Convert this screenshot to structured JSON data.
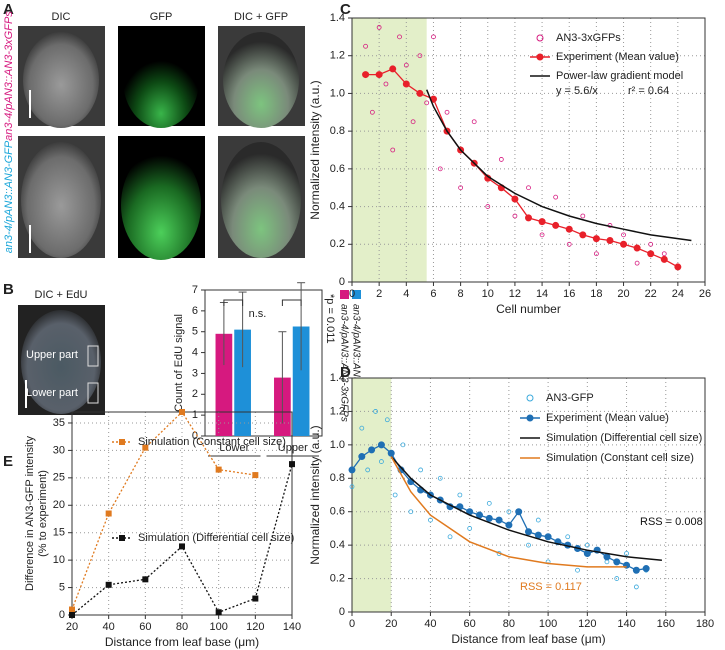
{
  "panel_labels": [
    "A",
    "B",
    "C",
    "D",
    "E"
  ],
  "panel_a": {
    "columns": [
      "DIC",
      "GFP",
      "DIC + GFP"
    ],
    "rows": [
      {
        "label": "an3-4/pAN3::AN3-3xGFPs",
        "color": "#d6197f"
      },
      {
        "label": "an3-4/pAN3::AN3-GFP",
        "color": "#1ba6d9"
      }
    ]
  },
  "panel_b_image": {
    "title": "DIC + EdU",
    "regions": [
      "Upper part",
      "Lower part"
    ]
  },
  "chart_data": [
    {
      "type": "bar",
      "categories": [
        "Lower",
        "Upper"
      ],
      "series": [
        {
          "name": "an3-4/pAN3::AN3-3xGFPs",
          "color": "#d6197f",
          "values": [
            4.9,
            2.8
          ],
          "errors": [
            1.5,
            2.2
          ]
        },
        {
          "name": "an3-4/pAN3::AN3-GFP",
          "color": "#1e90d8",
          "values": [
            5.1,
            5.25
          ],
          "errors": [
            1.8,
            2.1
          ]
        }
      ],
      "ylabel": "Count of EdU signal",
      "ylim": [
        0,
        7
      ],
      "yticks": [
        0,
        1,
        2,
        3,
        4,
        5,
        6,
        7
      ],
      "annotations": [
        "n.s.",
        "*p = 0.011"
      ]
    },
    {
      "type": "line",
      "xlabel": "Cell number",
      "ylabel": "Normalized intensity (a.u.)",
      "xlim": [
        0,
        26
      ],
      "xticks": [
        0,
        2,
        4,
        6,
        8,
        10,
        12,
        14,
        16,
        18,
        20,
        22,
        24,
        26
      ],
      "ylim": [
        0,
        1.4
      ],
      "yticks": [
        0,
        0.2,
        0.4,
        0.6,
        0.8,
        {
          "value": 1,
          "label": "1.0"
        },
        1.2,
        1.4
      ],
      "grid": true,
      "highlight_x": [
        0,
        5.5
      ],
      "highlight_color": "#e3efc9",
      "series": [
        {
          "name": "AN3-3xGFPs",
          "color": "#d6197f",
          "mode": "points",
          "x": [
            1,
            1.5,
            2,
            2.5,
            3,
            3.5,
            4,
            4.5,
            5,
            5.5,
            6,
            6.5,
            7,
            8,
            9,
            10,
            11,
            12,
            13,
            14,
            15,
            16,
            17,
            18,
            19,
            20,
            21,
            22,
            23,
            24
          ],
          "values": [
            1.25,
            0.9,
            1.35,
            1.05,
            0.7,
            1.3,
            1.15,
            0.85,
            1.2,
            0.95,
            1.3,
            0.6,
            0.9,
            0.5,
            0.85,
            0.4,
            0.65,
            0.35,
            0.5,
            0.25,
            0.45,
            0.2,
            0.35,
            0.15,
            0.3,
            0.25,
            0.1,
            0.2,
            0.15,
            0.08
          ]
        },
        {
          "name": "Experiment (Mean value)",
          "color": "#e8202a",
          "mode": "line+markers",
          "x": [
            1,
            2,
            3,
            4,
            5,
            6,
            7,
            8,
            9,
            10,
            11,
            12,
            13,
            14,
            15,
            16,
            17,
            18,
            19,
            20,
            21,
            22,
            23,
            24
          ],
          "values": [
            1.1,
            1.1,
            1.13,
            1.05,
            1.0,
            0.97,
            0.8,
            0.7,
            0.63,
            0.55,
            0.5,
            0.44,
            0.34,
            0.32,
            0.3,
            0.28,
            0.25,
            0.23,
            0.22,
            0.2,
            0.18,
            0.15,
            0.12,
            0.08
          ]
        },
        {
          "name": "Power-law gradient model",
          "color": "#111111",
          "mode": "line",
          "x": [
            5.5,
            6,
            7,
            8,
            10,
            12,
            14,
            16,
            18,
            20,
            22,
            25
          ],
          "values": [
            1.02,
            0.93,
            0.8,
            0.7,
            0.56,
            0.47,
            0.4,
            0.35,
            0.31,
            0.28,
            0.25,
            0.22
          ]
        }
      ],
      "model_equation": "y = 5.6/x",
      "r_squared": "r² = 0.64"
    },
    {
      "type": "line",
      "xlabel": "Distance from leaf base (μm)",
      "ylabel": "Normalized intensity (a.u.)",
      "xlim": [
        0,
        180
      ],
      "xticks": [
        0,
        20,
        40,
        60,
        80,
        100,
        120,
        140,
        160,
        180
      ],
      "ylim": [
        0,
        1.4
      ],
      "yticks": [
        0,
        0.2,
        0.4,
        0.6,
        0.8,
        {
          "value": 1,
          "label": "1.0"
        },
        1.2,
        1.4
      ],
      "grid": true,
      "highlight_x": [
        0,
        20
      ],
      "highlight_color": "#e3efc9",
      "series": [
        {
          "name": "AN3-GFP",
          "color": "#3aa9dc",
          "mode": "points",
          "x": [
            0,
            5,
            8,
            12,
            15,
            18,
            22,
            26,
            30,
            35,
            40,
            45,
            50,
            55,
            60,
            70,
            75,
            80,
            90,
            95,
            100,
            110,
            115,
            120,
            130,
            135,
            140,
            145,
            150
          ],
          "values": [
            0.75,
            1.1,
            0.85,
            1.2,
            0.9,
            1.15,
            0.7,
            1.0,
            0.6,
            0.85,
            0.55,
            0.8,
            0.45,
            0.7,
            0.5,
            0.65,
            0.35,
            0.6,
            0.4,
            0.55,
            0.3,
            0.45,
            0.25,
            0.4,
            0.3,
            0.2,
            0.35,
            0.15,
            0.25
          ]
        },
        {
          "name": "Experiment (Mean value)",
          "color": "#1f6fb4",
          "mode": "line+markers",
          "x": [
            0,
            5,
            10,
            15,
            20,
            25,
            30,
            35,
            40,
            45,
            50,
            55,
            60,
            65,
            70,
            75,
            80,
            85,
            90,
            95,
            100,
            105,
            110,
            115,
            120,
            125,
            130,
            135,
            140,
            145,
            150
          ],
          "values": [
            0.85,
            0.93,
            0.97,
            1.0,
            0.95,
            0.85,
            0.78,
            0.73,
            0.7,
            0.67,
            0.63,
            0.63,
            0.6,
            0.58,
            0.56,
            0.55,
            0.52,
            0.6,
            0.48,
            0.46,
            0.45,
            0.42,
            0.4,
            0.38,
            0.35,
            0.37,
            0.33,
            0.3,
            0.28,
            0.25,
            0.26
          ]
        },
        {
          "name": "Simulation (Differential cell size)",
          "color": "#111111",
          "mode": "line",
          "x": [
            20,
            30,
            40,
            60,
            80,
            100,
            120,
            140,
            158
          ],
          "values": [
            0.93,
            0.8,
            0.7,
            0.58,
            0.49,
            0.42,
            0.37,
            0.33,
            0.31
          ]
        },
        {
          "name": "Simulation (Constant cell size)",
          "color": "#e07a1f",
          "mode": "line",
          "x": [
            20,
            30,
            40,
            60,
            80,
            100,
            120,
            140
          ],
          "values": [
            0.93,
            0.72,
            0.58,
            0.42,
            0.33,
            0.29,
            0.27,
            0.27
          ]
        }
      ],
      "annotations": [
        {
          "text": "RSS = 0.008",
          "color": "#111111"
        },
        {
          "text": "RSS = 0.117",
          "color": "#e07a1f"
        }
      ]
    },
    {
      "type": "line",
      "xlabel": "Distance from leaf base (μm)",
      "ylabel": [
        "Difference in AN3-GFP intensity",
        "(% to experiment)"
      ],
      "xlim": [
        20,
        140
      ],
      "xticks": [
        20,
        40,
        60,
        80,
        100,
        120,
        140
      ],
      "ylim": [
        0,
        37
      ],
      "yticks": [
        0,
        5,
        10,
        15,
        20,
        25,
        30,
        35
      ],
      "grid": true,
      "series": [
        {
          "name": "Simulation (Constant cell size)",
          "color": "#e07a1f",
          "mode": "dotted+markers",
          "x": [
            20,
            40,
            60,
            80,
            100,
            120
          ],
          "values": [
            1,
            18.5,
            30.5,
            37,
            26.5,
            25.5
          ]
        },
        {
          "name": "Simulation (Differential cell size)",
          "color": "#111111",
          "mode": "dotted+markers",
          "x": [
            20,
            40,
            60,
            80,
            100,
            120,
            140
          ],
          "values": [
            0,
            5.5,
            6.5,
            12.5,
            0.5,
            3,
            27.5
          ]
        }
      ]
    }
  ]
}
